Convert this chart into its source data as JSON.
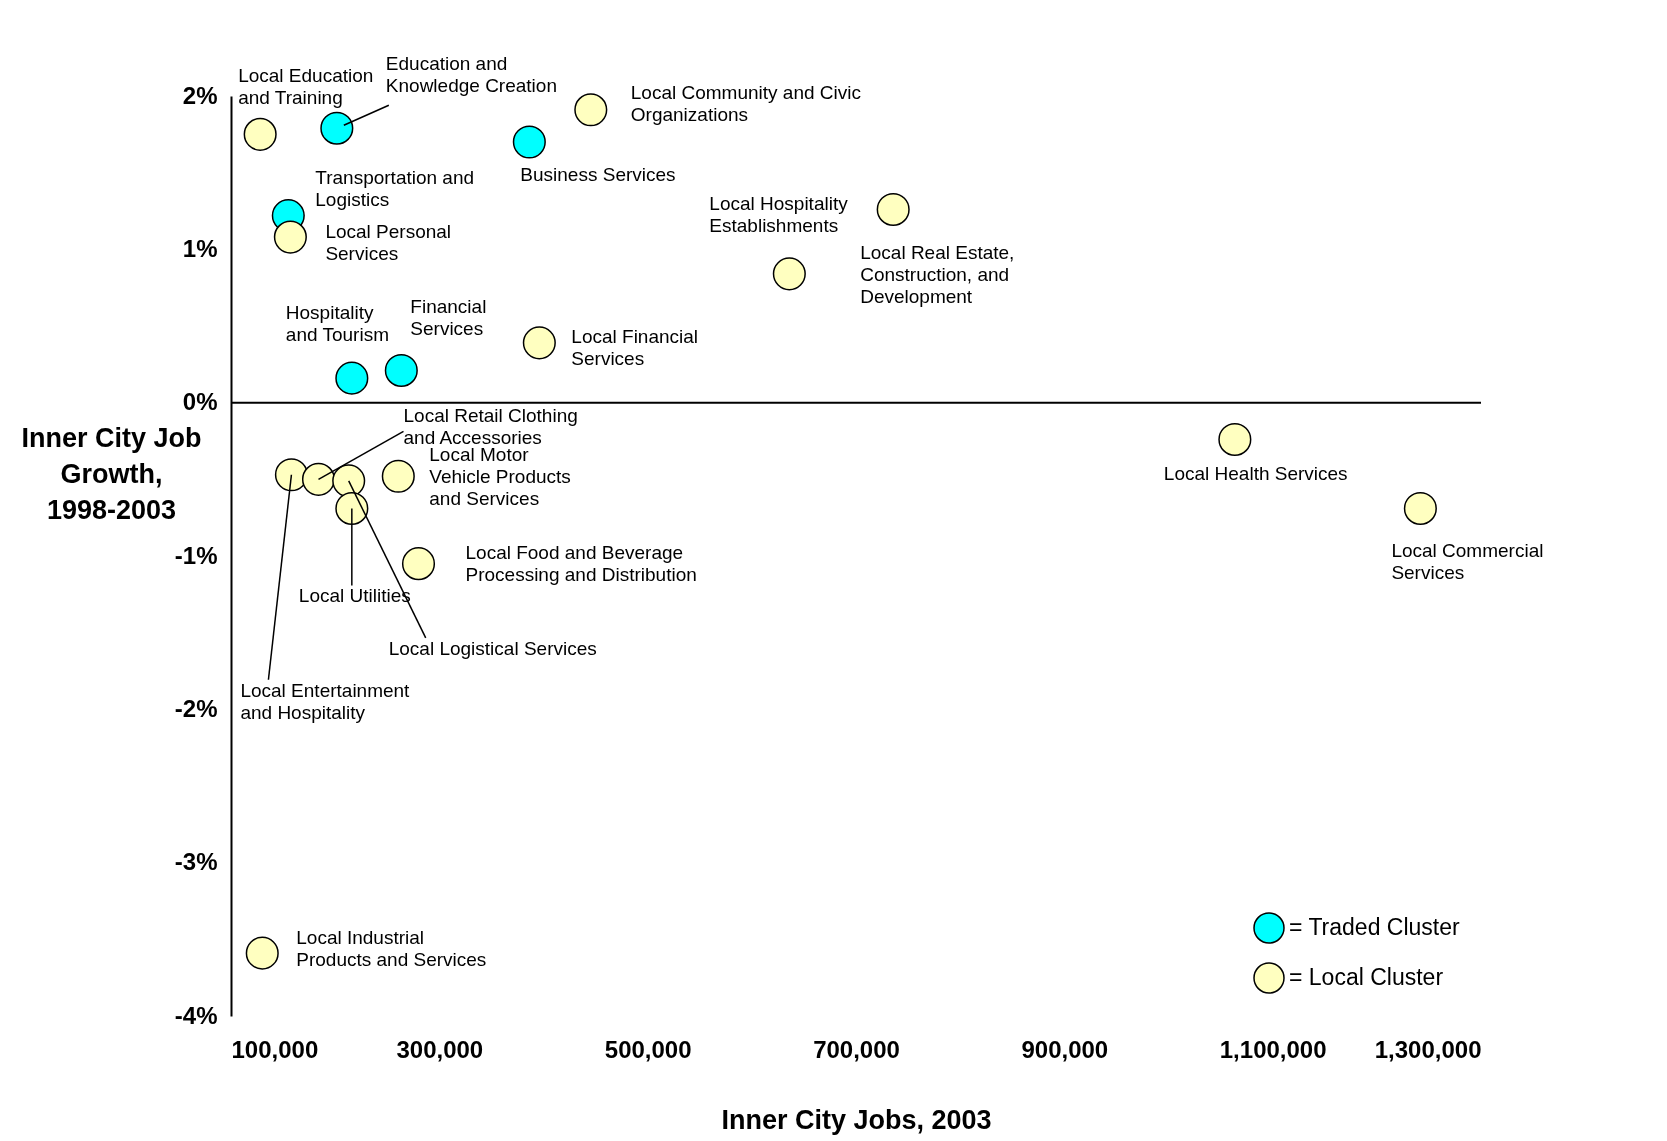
{
  "chart_data": {
    "type": "scatter",
    "xlabel": "Inner City Jobs, 2003",
    "ylabel": "Inner City Job Growth, 1998-2003",
    "xlim": [
      100000,
      1300000
    ],
    "xticks": [
      {
        "value": 100000,
        "label": "100,000"
      },
      {
        "value": 300000,
        "label": "300,000"
      },
      {
        "value": 500000,
        "label": "500,000"
      },
      {
        "value": 700000,
        "label": "700,000"
      },
      {
        "value": 900000,
        "label": "900,000"
      },
      {
        "value": 1100000,
        "label": "1,100,000"
      },
      {
        "value": 1300000,
        "label": "1,300,000"
      }
    ],
    "ylim": [
      -4,
      2
    ],
    "yticks": [
      {
        "value": 2,
        "label": "2%"
      },
      {
        "value": 1,
        "label": "1%"
      },
      {
        "value": 0,
        "label": "0%"
      },
      {
        "value": -1,
        "label": "-1%"
      },
      {
        "value": -2,
        "label": "-2%"
      },
      {
        "value": -3,
        "label": "-3%"
      },
      {
        "value": -4,
        "label": "-4%"
      }
    ],
    "grid": false,
    "marker": "circle",
    "legend": "bottom right",
    "ref_lines": [
      {
        "axis": "y",
        "value": 0
      }
    ],
    "series": [
      {
        "name": "= Traded Cluster",
        "color": "#00ffff",
        "x": [
          201600,
          386400,
          155000,
          216000,
          263500
        ],
        "values": [
          1.79,
          1.7,
          1.22,
          0.16,
          0.21
        ]
      },
      {
        "name": "= Local Cluster",
        "color": "#ffffc0",
        "x": [
          128000,
          445400,
          157000,
          636000,
          735700,
          396000,
          158000,
          184000,
          213000,
          216000,
          260600,
          280000,
          130000,
          1063700,
          1241800
        ],
        "values": [
          1.75,
          1.91,
          1.08,
          0.84,
          1.26,
          0.39,
          -0.47,
          -0.5,
          -0.51,
          -0.69,
          -0.48,
          -1.05,
          -3.59,
          -0.24,
          -0.69
        ]
      }
    ],
    "annotations": [
      "Local Education and Training",
      {
        "text": "Education and Knowledge Creation",
        "x": 201600,
        "y": 1.79
      },
      "Local Community and Civic Organizations",
      "Business Services",
      "Transportation and Logistics",
      "Local Personal Services",
      "Local Hospitality Establishments",
      "Local Real Estate, Construction, and Development",
      "Hospitality and Tourism",
      "Financial Services",
      "Local Financial Services",
      {
        "text": "Local Retail Clothing and Accessories",
        "x": 184000,
        "y": -0.5
      },
      "Local Motor Vehicle Products and Services",
      "Local Food and Beverage Processing and Distribution",
      {
        "text": "Local Utilities",
        "x": 216000,
        "y": -0.69
      },
      {
        "text": "Local Logistical Services",
        "x": 213000,
        "y": -0.51
      },
      {
        "text": "Local Entertainment and Hospitality",
        "x": 158000,
        "y": -0.47
      },
      "Local Industrial Products and Services",
      "Local Health Services",
      "Local Commercial Services"
    ]
  }
}
